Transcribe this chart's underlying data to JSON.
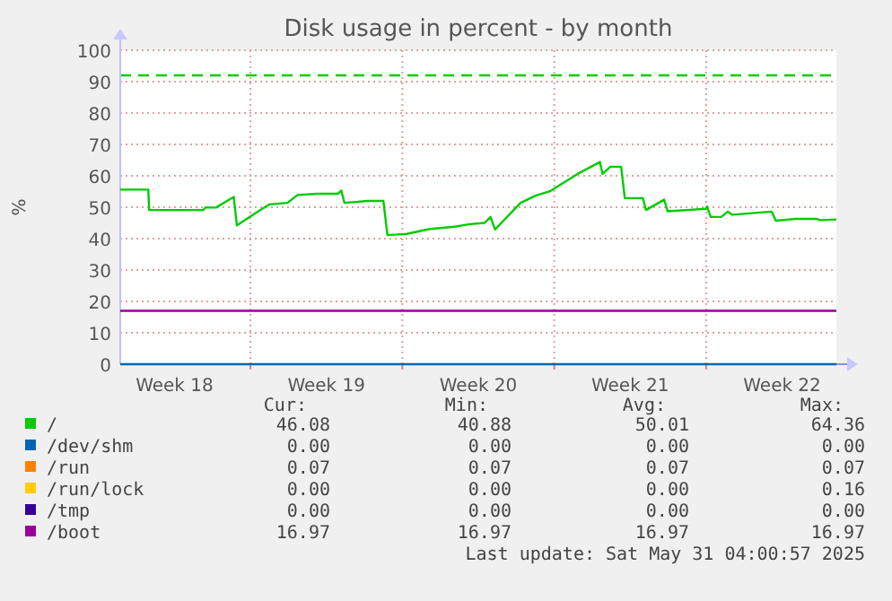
{
  "chart_data": {
    "type": "line",
    "title": "Disk usage in percent - by month",
    "ylabel": "%",
    "x": [
      "2025-04-28T04:00",
      "2025-04-29T11:00",
      "2025-04-29T12:00",
      "2025-05-02T00:00",
      "2025-05-02T02:00",
      "2025-05-02T14:00",
      "2025-05-03T09:30",
      "2025-05-03T13:00",
      "2025-05-04T12:00",
      "2025-05-05T01:00",
      "2025-05-05T21:00",
      "2025-05-06T08:00",
      "2025-05-07T06:00",
      "2025-05-08T05:00",
      "2025-05-08T08:30",
      "2025-05-08T12:00",
      "2025-05-09T14:00",
      "2025-05-10T07:00",
      "2025-05-10T11:30",
      "2025-05-11T09:00",
      "2025-05-12T09:00",
      "2025-05-13T13:30",
      "2025-05-14T06:30",
      "2025-05-14T23:00",
      "2025-05-15T05:30",
      "2025-05-15T10:30",
      "2025-05-16T14:45",
      "2025-05-17T07:15",
      "2025-05-18T00:00",
      "2025-05-19T05:45",
      "2025-05-20T06:30",
      "2025-05-20T09:30",
      "2025-05-20T18:00",
      "2025-05-21T06:00",
      "2025-05-21T10:00",
      "2025-05-22T06:00",
      "2025-05-22T09:30",
      "2025-05-23T05:30",
      "2025-05-23T09:30",
      "2025-05-25T03:30",
      "2025-05-25T05:00",
      "2025-05-25T09:00",
      "2025-05-25T20:30",
      "2025-05-26T04:00",
      "2025-05-26T09:00",
      "2025-05-28T04:30",
      "2025-05-28T09:00",
      "2025-05-29T07:00",
      "2025-05-30T06:00",
      "2025-05-30T10:00",
      "2025-05-31T04:00"
    ],
    "series": [
      {
        "name": "/",
        "color": "#00cc00",
        "values": [
          55.6,
          55.6,
          49.1,
          49.1,
          49.9,
          49.9,
          53.3,
          44.2,
          48.6,
          50.9,
          51.4,
          53.9,
          54.3,
          54.3,
          55.3,
          51.4,
          52.0,
          52.0,
          41.1,
          41.5,
          43.0,
          43.8,
          44.6,
          45.0,
          46.9,
          42.9,
          51.4,
          53.7,
          55.2,
          60.6,
          64.4,
          60.6,
          62.9,
          62.9,
          52.9,
          52.9,
          49.1,
          52.4,
          48.7,
          49.5,
          50.2,
          46.9,
          46.9,
          48.6,
          47.6,
          48.6,
          45.7,
          46.3,
          46.3,
          45.9,
          46.1
        ]
      },
      {
        "name": "/dev/shm",
        "color": "#0066b3",
        "x": [
          "2025-04-28T04:00",
          "2025-05-31T04:00"
        ],
        "values": [
          0,
          0
        ]
      },
      {
        "name": "/run",
        "color": "#ff8000",
        "values": [
          null,
          null,
          null,
          null,
          null,
          null,
          null,
          null,
          null,
          null,
          null,
          null,
          null,
          null,
          null,
          null,
          null,
          null,
          null,
          null,
          null,
          null,
          null,
          null,
          null,
          null,
          null,
          null,
          null,
          null,
          null,
          null,
          null,
          null,
          null,
          null,
          null,
          null,
          null,
          null,
          null,
          null,
          null,
          null,
          null,
          null,
          null,
          null,
          null,
          null,
          null
        ]
      },
      {
        "name": "/run/lock",
        "color": "#ffcc00",
        "values": [
          null,
          null,
          null,
          null,
          null,
          null,
          null,
          null,
          null,
          null,
          null,
          null,
          null,
          null,
          null,
          null,
          null,
          null,
          null,
          null,
          null,
          null,
          null,
          null,
          null,
          null,
          null,
          null,
          null,
          null,
          null,
          null,
          null,
          null,
          null,
          null,
          null,
          null,
          null,
          null,
          null,
          null,
          null,
          null,
          null,
          null,
          null,
          null,
          null,
          null,
          null
        ]
      },
      {
        "name": "/tmp",
        "color": "#330099",
        "values": [
          null,
          null,
          null,
          null,
          null,
          null,
          null,
          null,
          null,
          null,
          null,
          null,
          null,
          null,
          null,
          null,
          null,
          null,
          null,
          null,
          null,
          null,
          null,
          null,
          null,
          null,
          null,
          null,
          null,
          null,
          null,
          null,
          null,
          null,
          null,
          null,
          null,
          null,
          null,
          null,
          null,
          null,
          null,
          null,
          null,
          null,
          null,
          null,
          null,
          null,
          null
        ]
      },
      {
        "name": "/boot",
        "color": "#990099",
        "x": [
          "2025-04-28T04:00",
          "2025-05-31T04:00"
        ],
        "values": [
          17,
          17
        ]
      }
    ],
    "xlim": [
      "2025-04-28T04:00",
      "2025-05-31T04:00"
    ],
    "xticks": [
      {
        "value": "2025-04-30T16:00",
        "label": "Week 18"
      },
      {
        "value": "2025-05-04T04:00",
        "label": null
      },
      {
        "value": "2025-05-07T16:00",
        "label": "Week 19"
      },
      {
        "value": "2025-05-11T04:00",
        "label": null
      },
      {
        "value": "2025-05-14T16:00",
        "label": "Week 20"
      },
      {
        "value": "2025-05-18T04:00",
        "label": null
      },
      {
        "value": "2025-05-21T16:00",
        "label": "Week 21"
      },
      {
        "value": "2025-05-25T04:00",
        "label": null
      },
      {
        "value": "2025-05-28T16:00",
        "label": "Week 22"
      }
    ],
    "ylim": [
      0,
      100
    ],
    "yticks": [
      0,
      10,
      20,
      30,
      40,
      50,
      60,
      70,
      80,
      90,
      100
    ],
    "grid": true,
    "legend": "bottom",
    "line_style": "solid",
    "marker": "none",
    "ref_lines": [
      {
        "axis": "y",
        "value": 92,
        "color": "#00cc00",
        "line_style": "dashed"
      }
    ],
    "annotations": [
      "Cur:",
      "Min:",
      "Avg:",
      "Max:",
      "46.08",
      "40.88",
      "50.01",
      "64.36",
      "0.00",
      "0.00",
      "0.00",
      "0.00",
      "0.07",
      "0.07",
      "0.07",
      "0.07",
      "0.00",
      "0.00",
      "0.00",
      "0.16",
      "0.00",
      "0.00",
      "0.00",
      "0.00",
      "16.97",
      "16.97",
      "16.97",
      "16.97",
      "Last update: Sat May 31 04:00:57 2025"
    ]
  }
}
